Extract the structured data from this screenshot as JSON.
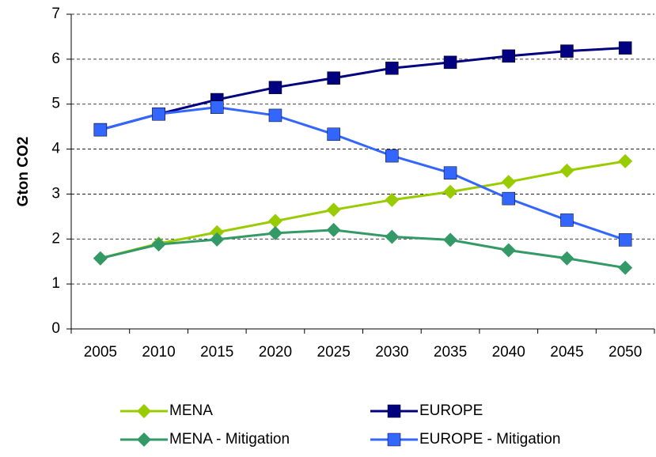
{
  "chart_data": {
    "type": "line",
    "y_label": "Gton CO2",
    "categories": [
      "2005",
      "2010",
      "2015",
      "2020",
      "2025",
      "2030",
      "2035",
      "2040",
      "2045",
      "2050"
    ],
    "series": [
      {
        "name": "MENA",
        "color": "#99cc00",
        "marker": "diamond",
        "values": [
          1.57,
          1.9,
          2.15,
          2.4,
          2.65,
          2.87,
          3.05,
          3.27,
          3.52,
          3.73
        ]
      },
      {
        "name": "EUROPE",
        "color": "#000080",
        "marker": "square",
        "values": [
          4.43,
          4.78,
          5.1,
          5.37,
          5.58,
          5.8,
          5.93,
          6.07,
          6.18,
          6.25
        ]
      },
      {
        "name": "MENA - Mitigation",
        "color": "#339966",
        "marker": "diamond",
        "values": [
          1.57,
          1.88,
          1.99,
          2.13,
          2.2,
          2.05,
          1.98,
          1.75,
          1.57,
          1.36
        ]
      },
      {
        "name": "EUROPE - Mitigation",
        "color": "#3366ff",
        "marker": "square",
        "values": [
          4.43,
          4.78,
          4.93,
          4.75,
          4.33,
          3.85,
          3.47,
          2.9,
          2.42,
          1.98
        ]
      }
    ],
    "ylim": [
      0,
      7
    ],
    "yticks": [
      0,
      1,
      2,
      3,
      4,
      5,
      6,
      7
    ],
    "grid": true
  }
}
